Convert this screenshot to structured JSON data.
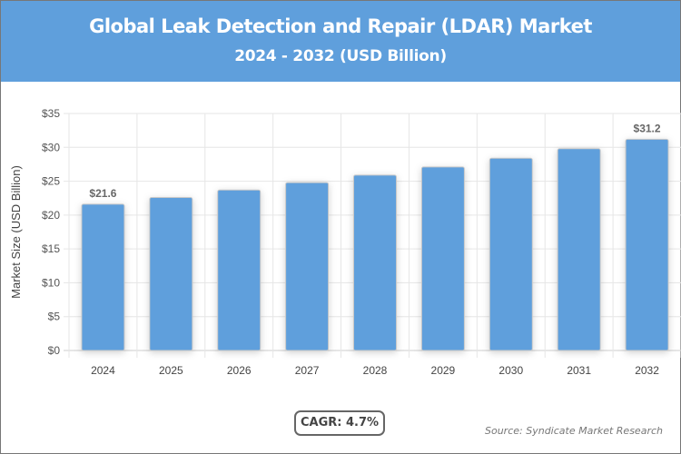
{
  "header": {
    "title": "Global Leak Detection and Repair (LDAR) Market",
    "subtitle": "2024 - 2032 (USD Billion)"
  },
  "chart_data": {
    "type": "bar",
    "title": "Global Leak Detection and Repair (LDAR) Market",
    "subtitle": "2024 - 2032 (USD Billion)",
    "categories": [
      "2024",
      "2025",
      "2026",
      "2027",
      "2028",
      "2029",
      "2030",
      "2031",
      "2032"
    ],
    "values": [
      21.6,
      22.6,
      23.7,
      24.8,
      25.9,
      27.1,
      28.4,
      29.8,
      31.2
    ],
    "data_labels": {
      "0": "$21.6",
      "8": "$31.2"
    },
    "xlabel": "",
    "ylabel": "Market Size (USD Billion)",
    "ylim": [
      0,
      35
    ],
    "yticks": [
      "$0",
      "$5",
      "$10",
      "$15",
      "$20",
      "$25",
      "$30",
      "$35"
    ],
    "grid": true,
    "bar_color": "#5f9fdc"
  },
  "footer": {
    "cagr": "CAGR: 4.7%",
    "source": "Source: Syndicate Market Research"
  }
}
